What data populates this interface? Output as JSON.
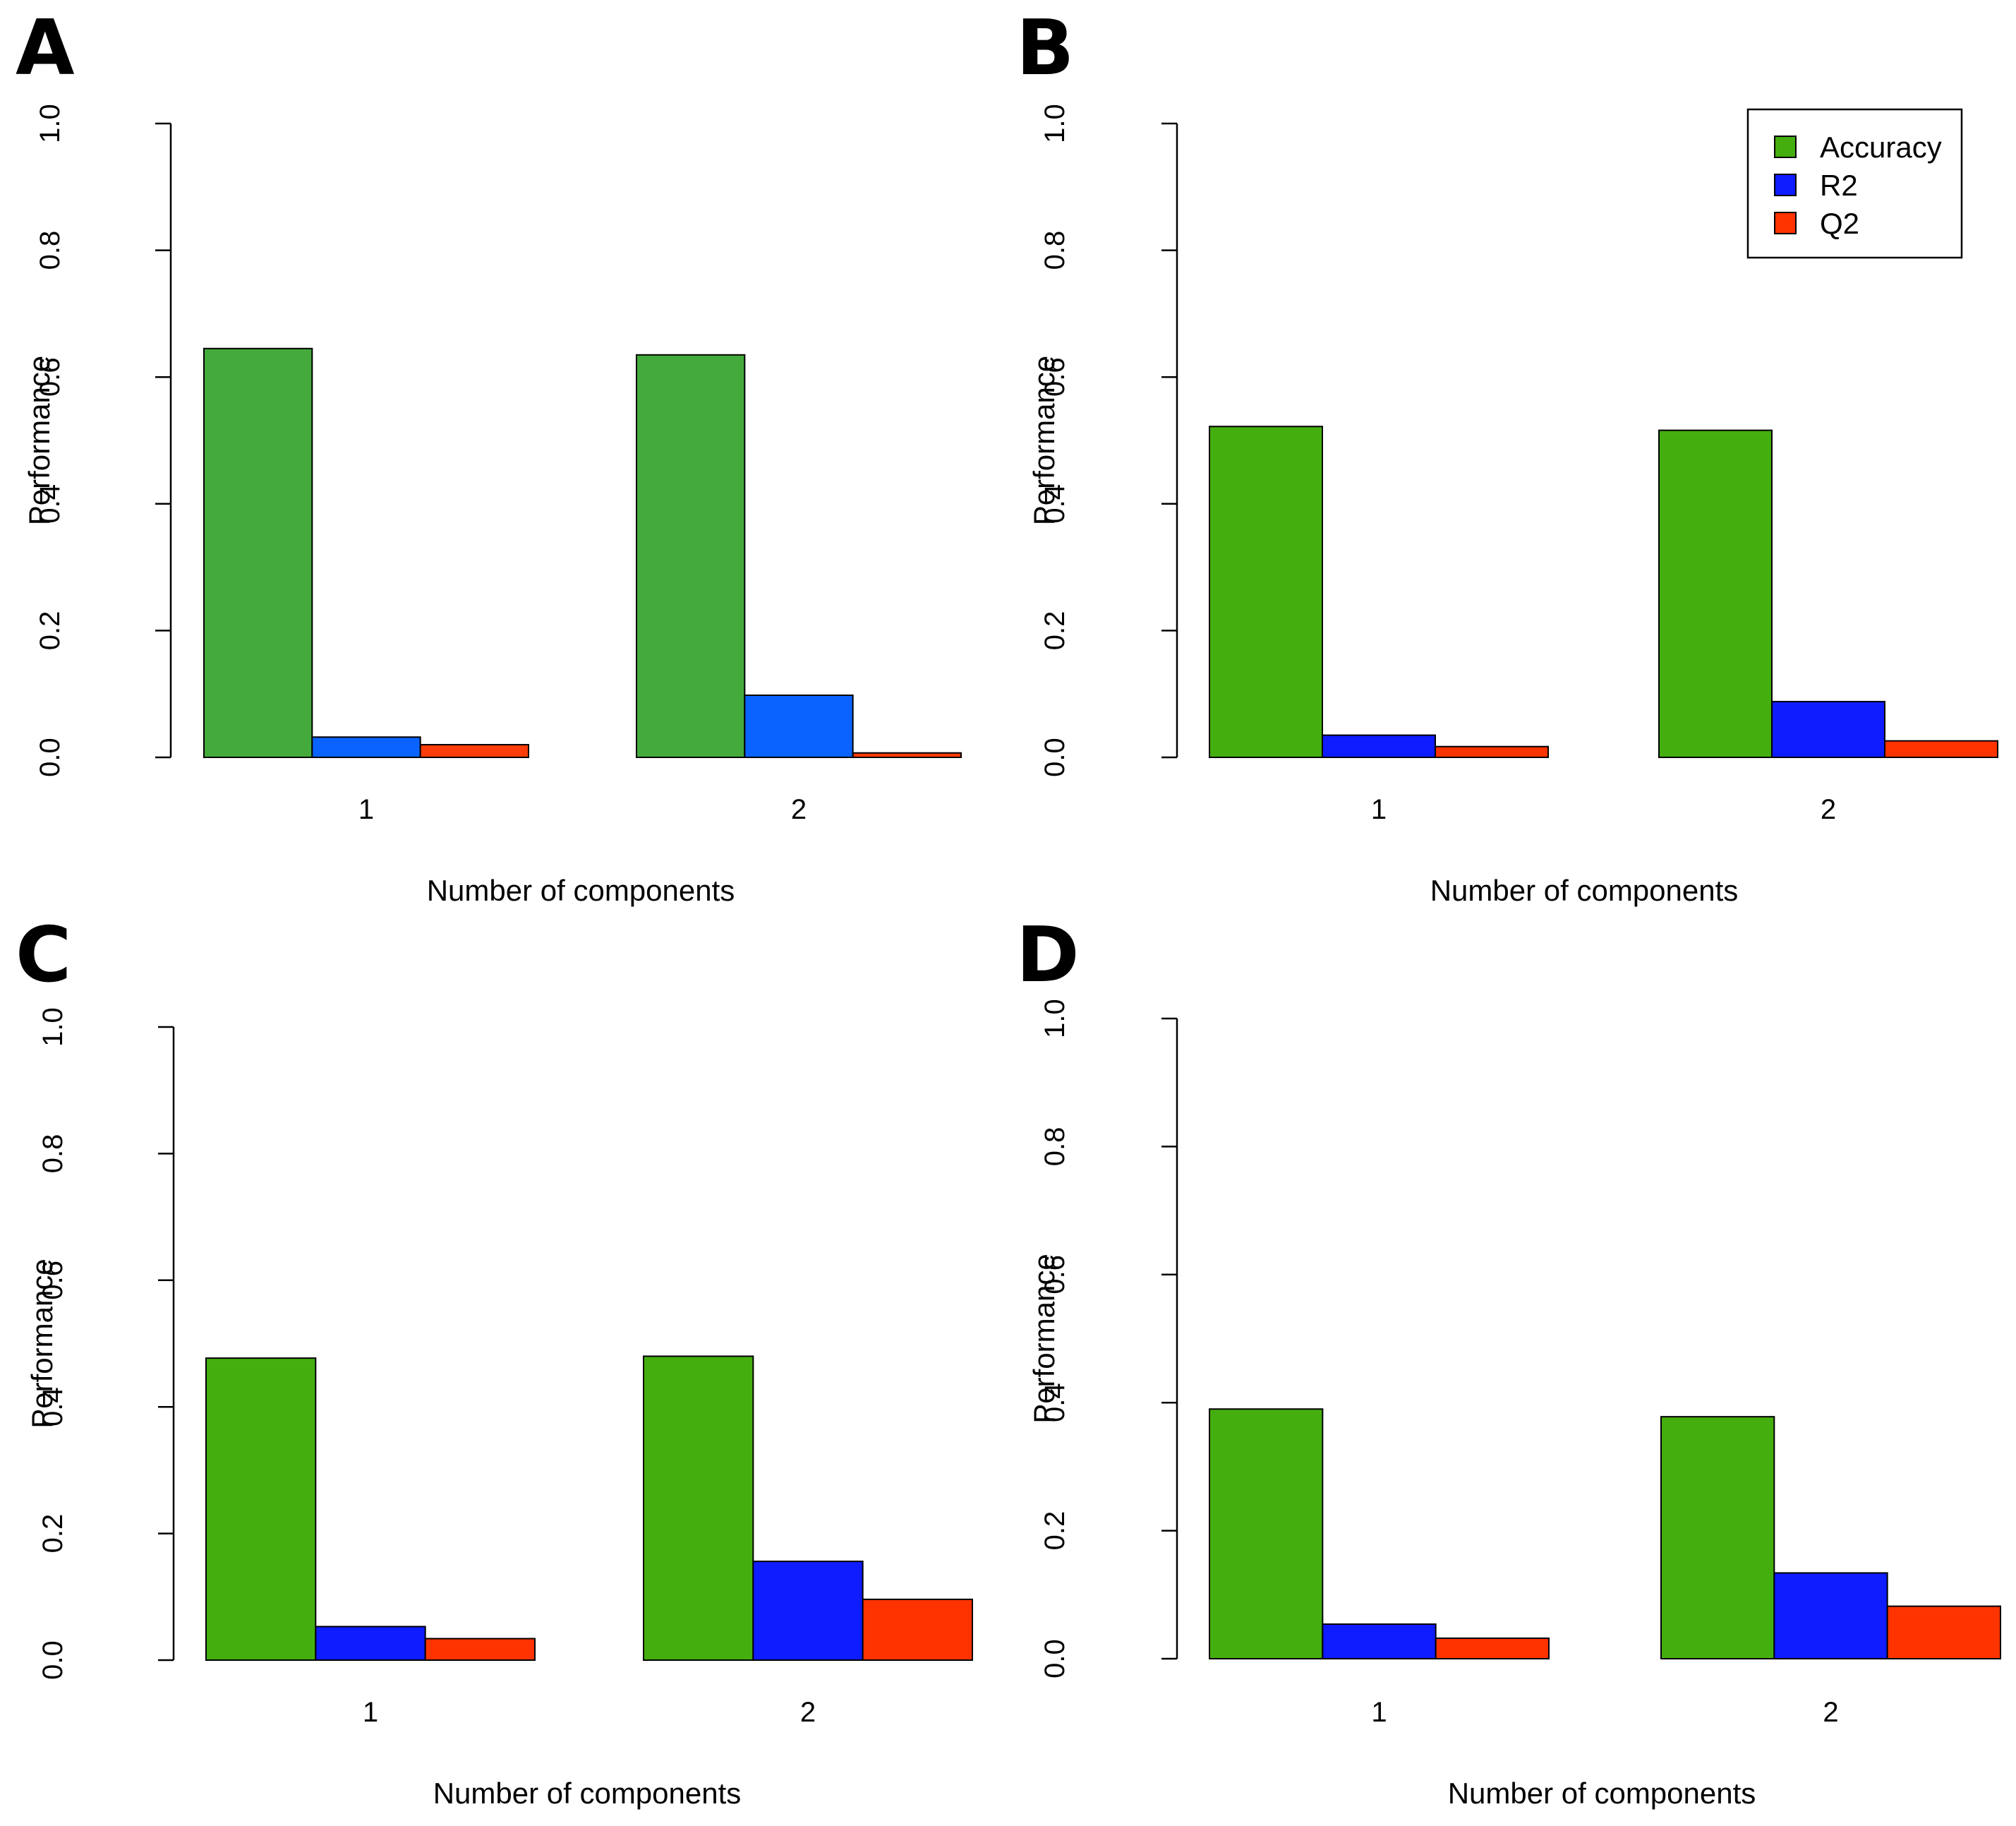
{
  "chart_data": [
    {
      "type": "bar",
      "panel": "A",
      "categories": [
        "1",
        "2"
      ],
      "series": [
        {
          "name": "Accuracy",
          "values": [
            0.645,
            0.635
          ]
        },
        {
          "name": "R2",
          "values": [
            0.032,
            0.098
          ]
        },
        {
          "name": "Q2",
          "values": [
            0.02,
            0.007
          ]
        }
      ],
      "colors": [
        "#44AA3B",
        "#0B63FF",
        "#FF3D0A"
      ],
      "xlabel": "Number of components",
      "ylabel": "Performance",
      "ylim": [
        0,
        1
      ],
      "yticks": [
        "0.0",
        "0.2",
        "0.4",
        "0.6",
        "0.8",
        "1.0"
      ],
      "legend": false
    },
    {
      "type": "bar",
      "panel": "B",
      "categories": [
        "1",
        "2"
      ],
      "series": [
        {
          "name": "Accuracy",
          "values": [
            0.522,
            0.516
          ]
        },
        {
          "name": "R2",
          "values": [
            0.035,
            0.088
          ]
        },
        {
          "name": "Q2",
          "values": [
            0.017,
            0.026
          ]
        }
      ],
      "colors": [
        "#44AE0F",
        "#0E1CFF",
        "#FF3300"
      ],
      "xlabel": "Number of components",
      "ylabel": "Performance",
      "ylim": [
        0,
        1
      ],
      "yticks": [
        "0.0",
        "0.2",
        "0.4",
        "0.6",
        "0.8",
        "1.0"
      ],
      "legend": true,
      "legend_position": "top-right"
    },
    {
      "type": "bar",
      "panel": "C",
      "categories": [
        "1",
        "2"
      ],
      "series": [
        {
          "name": "Accuracy",
          "values": [
            0.477,
            0.48
          ]
        },
        {
          "name": "R2",
          "values": [
            0.053,
            0.156
          ]
        },
        {
          "name": "Q2",
          "values": [
            0.034,
            0.096
          ]
        }
      ],
      "colors": [
        "#44AE0F",
        "#0E1CFF",
        "#FF3300"
      ],
      "xlabel": "Number of components",
      "ylabel": "Performance",
      "ylim": [
        0,
        1
      ],
      "yticks": [
        "0.0",
        "0.2",
        "0.4",
        "0.6",
        "0.8",
        "1.0"
      ],
      "legend": false
    },
    {
      "type": "bar",
      "panel": "D",
      "categories": [
        "1",
        "2"
      ],
      "series": [
        {
          "name": "Accuracy",
          "values": [
            0.39,
            0.378
          ]
        },
        {
          "name": "R2",
          "values": [
            0.054,
            0.134
          ]
        },
        {
          "name": "Q2",
          "values": [
            0.032,
            0.082
          ]
        }
      ],
      "colors": [
        "#44AE0F",
        "#0E1CFF",
        "#FF3300"
      ],
      "xlabel": "Number of components",
      "ylabel": "Performance",
      "ylim": [
        0,
        1
      ],
      "yticks": [
        "0.0",
        "0.2",
        "0.4",
        "0.6",
        "0.8",
        "1.0"
      ],
      "legend": false
    }
  ]
}
